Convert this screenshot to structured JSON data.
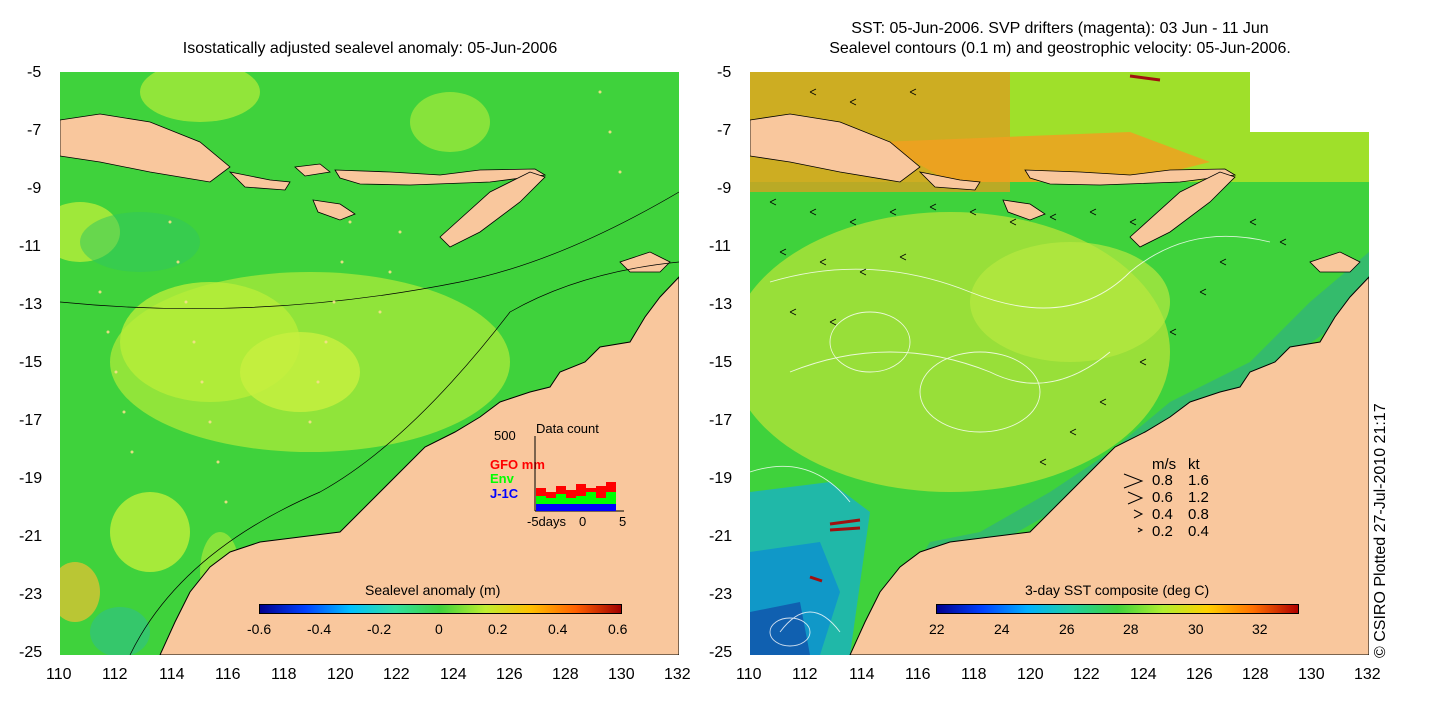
{
  "left_panel": {
    "title": "Isostatically adjusted sealevel anomaly: 05-Jun-2006",
    "y_ticks": [
      "-5",
      "-7",
      "-9",
      "-11",
      "-13",
      "-15",
      "-17",
      "-19",
      "-21",
      "-23",
      "-25"
    ],
    "x_ticks": [
      "110",
      "112",
      "114",
      "116",
      "118",
      "120",
      "122",
      "124",
      "126",
      "128",
      "130",
      "132"
    ],
    "colorbar": {
      "label": "Sealevel anomaly (m)",
      "ticks": [
        "-0.6",
        "-0.4",
        "-0.2",
        "0",
        "0.2",
        "0.4",
        "0.6"
      ]
    },
    "inset": {
      "title": "Data count",
      "y_max_label": "500",
      "series": [
        {
          "name": "GFO mm",
          "color": "#ff0000"
        },
        {
          "name": "Env",
          "color": "#00ff00"
        },
        {
          "name": "J-1C",
          "color": "#0000ff"
        }
      ],
      "x_labels": [
        "-5days",
        "0",
        "5"
      ]
    }
  },
  "right_panel": {
    "title_line1": "SST: 05-Jun-2006. SVP drifters (magenta): 03 Jun - 11 Jun",
    "title_line2": "Sealevel contours (0.1 m) and geostrophic velocity: 05-Jun-2006.",
    "y_ticks": [
      "-5",
      "-7",
      "-9",
      "-11",
      "-13",
      "-15",
      "-17",
      "-19",
      "-21",
      "-23",
      "-25"
    ],
    "x_ticks": [
      "110",
      "112",
      "114",
      "116",
      "118",
      "120",
      "122",
      "124",
      "126",
      "128",
      "130",
      "132"
    ],
    "colorbar": {
      "label": "3-day SST composite (deg C)",
      "ticks": [
        "22",
        "24",
        "26",
        "28",
        "30",
        "32"
      ]
    },
    "velocity_legend": {
      "header_ms": "m/s",
      "header_kt": "kt",
      "rows": [
        {
          "ms": "0.8",
          "kt": "1.6"
        },
        {
          "ms": "0.6",
          "kt": "1.2"
        },
        {
          "ms": "0.4",
          "kt": "0.8"
        },
        {
          "ms": "0.2",
          "kt": "0.4"
        }
      ]
    }
  },
  "credit": "© CSIRO Plotted 27-Jul-2010 21:17",
  "colors": {
    "land": "#f9c79d",
    "ocean_green": "#3fd23c",
    "anomaly_yellow": "#b8ee3a"
  }
}
